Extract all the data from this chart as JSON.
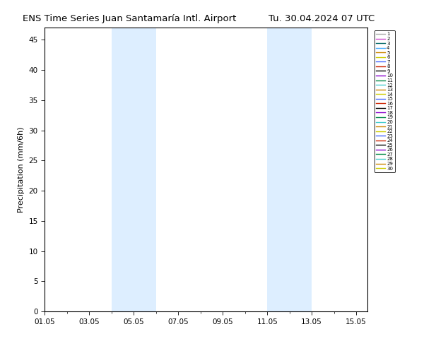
{
  "title": "ENS Time Series Juan Santamaría Intl. Airport",
  "title2": "Tu. 30.04.2024 07 UTC",
  "ylabel": "Precipitation (mm/6h)",
  "ylim": [
    0,
    47
  ],
  "yticks": [
    0,
    5,
    10,
    15,
    20,
    25,
    30,
    35,
    40,
    45
  ],
  "xtick_labels": [
    "01.05",
    "03.05",
    "05.05",
    "07.05",
    "09.05",
    "11.05",
    "13.05",
    "15.05"
  ],
  "xtick_positions_days": [
    1,
    3,
    5,
    7,
    9,
    11,
    13,
    15
  ],
  "shading": [
    {
      "start_day": 4.0,
      "end_day": 6.0
    },
    {
      "start_day": 11.0,
      "end_day": 13.0
    }
  ],
  "n_members": 30,
  "member_colors": [
    "#aaaaaa",
    "#cc44cc",
    "#006666",
    "#44aaff",
    "#cc8800",
    "#cccc00",
    "#4466ff",
    "#cc2200",
    "#000000",
    "#8800cc",
    "#008844",
    "#44cccc",
    "#cc8800",
    "#cccc00",
    "#4466ff",
    "#cc2200",
    "#000000",
    "#8800cc",
    "#008844",
    "#44cccc",
    "#cc8800",
    "#cccc00",
    "#4466ff",
    "#cc2200",
    "#000000",
    "#8800cc",
    "#008844",
    "#44cccc",
    "#cc8800",
    "#cccc00"
  ],
  "background_color": "#ffffff",
  "shading_color": "#ddeeff",
  "shading_alpha": 1.0,
  "legend_fontsize": 5.0,
  "title_fontsize": 9.5,
  "fig_width": 6.34,
  "fig_height": 4.9,
  "dpi": 100
}
